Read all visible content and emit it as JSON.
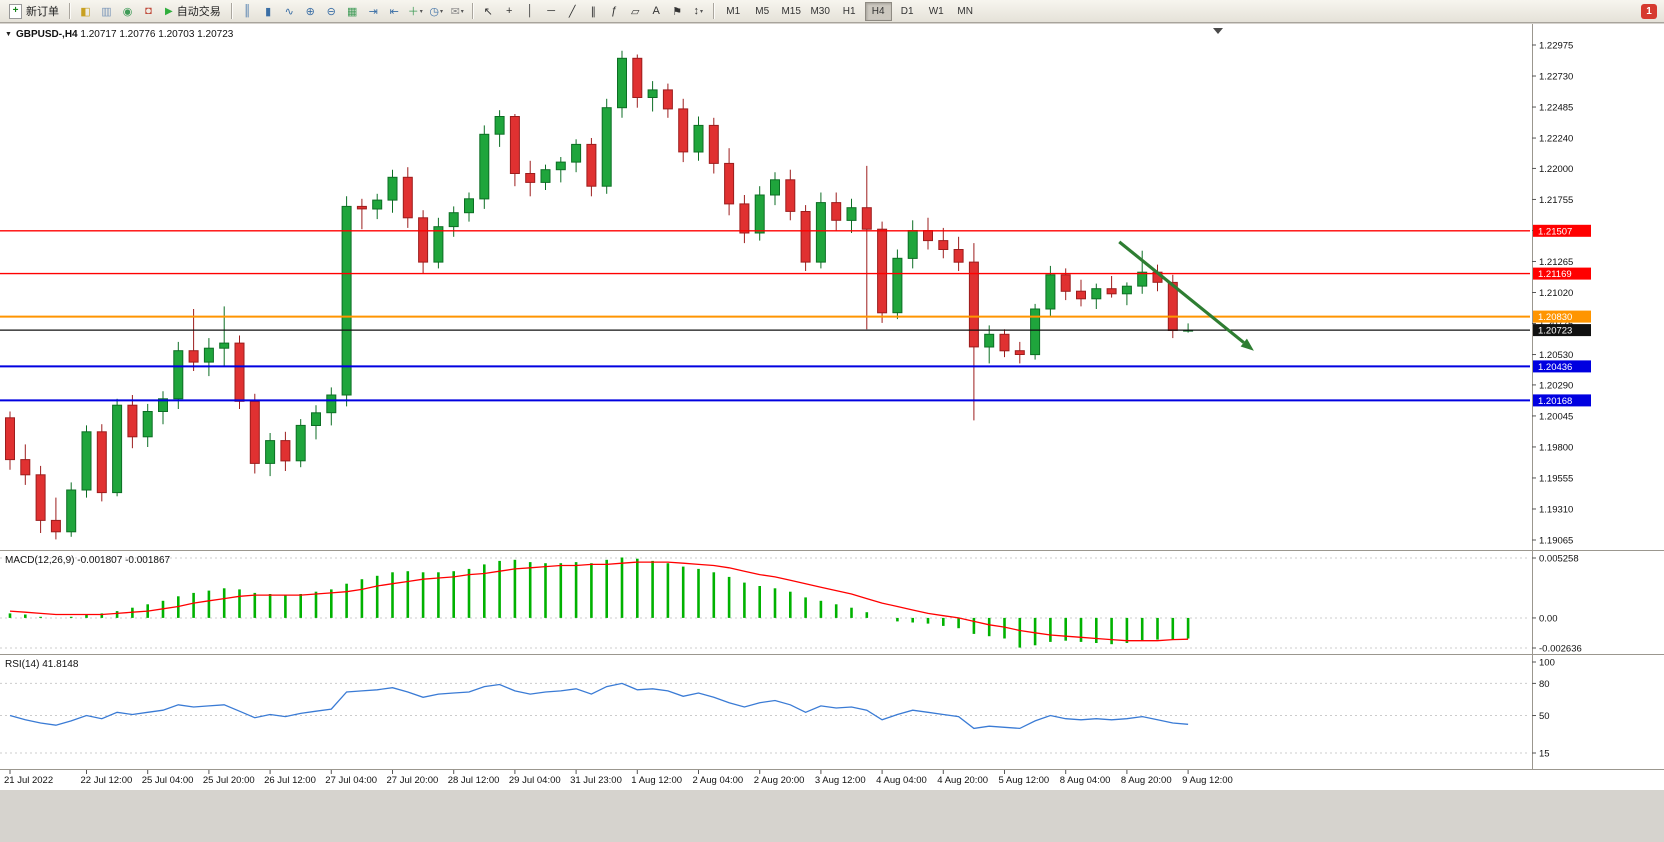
{
  "toolbar": {
    "new_order": {
      "label": "新订单"
    },
    "auto_trading": {
      "label": "自动交易"
    },
    "system_icons": [
      {
        "name": "market-watch-icon",
        "glyph": "◧",
        "color": "#c8a020"
      },
      {
        "name": "data-window-icon",
        "glyph": "▥",
        "color": "#7a96b8"
      },
      {
        "name": "navigator-icon",
        "glyph": "◉",
        "color": "#3f9b57"
      },
      {
        "name": "terminal-icon",
        "glyph": "◘",
        "color": "#c04a3a"
      }
    ],
    "chart_icons": [
      {
        "name": "bar-chart-mode-icon",
        "glyph": "║",
        "color": "#3a6ea5"
      },
      {
        "name": "candlestick-mode-icon",
        "glyph": "▮",
        "color": "#3a6ea5"
      },
      {
        "name": "line-chart-mode-icon",
        "glyph": "∿",
        "color": "#3a6ea5"
      },
      {
        "name": "zoom-in-icon",
        "glyph": "⊕",
        "color": "#3a6ea5"
      },
      {
        "name": "zoom-out-icon",
        "glyph": "⊖",
        "color": "#3a6ea5"
      },
      {
        "name": "tile-windows-icon",
        "glyph": "▦",
        "color": "#3f9b57"
      },
      {
        "name": "auto-scroll-icon",
        "glyph": "⇥",
        "color": "#3a6ea5"
      },
      {
        "name": "chart-shift-icon",
        "glyph": "⇤",
        "color": "#3a6ea5"
      },
      {
        "name": "add-indicator-icon",
        "glyph": "＋",
        "color": "#3f9b57",
        "caret": true
      },
      {
        "name": "period-icon",
        "glyph": "◷",
        "color": "#3a6ea5",
        "caret": true
      },
      {
        "name": "template-icon",
        "glyph": "✉",
        "color": "#8a8a8a",
        "caret": true
      }
    ],
    "tool_icons": [
      {
        "name": "cursor-icon",
        "glyph": "↖",
        "color": "#333333"
      },
      {
        "name": "crosshair-icon",
        "glyph": "+",
        "color": "#333333"
      },
      {
        "name": "vertical-line-icon",
        "glyph": "│",
        "color": "#333333"
      },
      {
        "name": "horizontal-line-icon",
        "glyph": "─",
        "color": "#333333"
      },
      {
        "name": "trendline-icon",
        "glyph": "╱",
        "color": "#333333"
      },
      {
        "name": "channel-icon",
        "glyph": "∥",
        "color": "#333333"
      },
      {
        "name": "fibonacci-icon",
        "glyph": "ƒ",
        "color": "#333333"
      },
      {
        "name": "shapes-icon",
        "glyph": "▱",
        "color": "#333333"
      },
      {
        "name": "text-icon",
        "glyph": "A",
        "color": "#333333"
      },
      {
        "name": "arrow-label-icon",
        "glyph": "⚑",
        "color": "#333333"
      },
      {
        "name": "arrows-menu-icon",
        "glyph": "↕",
        "color": "#333333",
        "caret": true
      }
    ],
    "timeframes": [
      "M1",
      "M5",
      "M15",
      "M30",
      "H1",
      "H4",
      "D1",
      "W1",
      "MN"
    ],
    "active_timeframe": "H4",
    "notification_badge": "1"
  },
  "chart": {
    "menu_arrow": "▼",
    "symbol_period": "GBPUSD-,H4",
    "ohlc_text": "1.20717 1.20776 1.20703 1.20723"
  },
  "chart_data": {
    "type": "candlestick",
    "symbol": "GBPUSD-",
    "timeframe": "H4",
    "current_ohlc": {
      "open": 1.20717,
      "high": 1.20776,
      "low": 1.20703,
      "close": 1.20723
    },
    "price_axis": {
      "top": 1.22975,
      "bottom": 1.19065,
      "labels": [
        "1.22975",
        "1.22730",
        "1.22485",
        "1.22240",
        "1.22000",
        "1.21755",
        "1.21510",
        "1.21265",
        "1.21020",
        "1.20775",
        "1.20530",
        "1.20290",
        "1.20045",
        "1.19800",
        "1.19555",
        "1.19310",
        "1.19065"
      ]
    },
    "time_labels": [
      "21 Jul 2022",
      "22 Jul 12:00",
      "25 Jul 04:00",
      "25 Jul 20:00",
      "26 Jul 12:00",
      "27 Jul 04:00",
      "27 Jul 20:00",
      "28 Jul 12:00",
      "29 Jul 04:00",
      "31 Jul 23:00",
      "1 Aug 12:00",
      "2 Aug 04:00",
      "2 Aug 20:00",
      "3 Aug 12:00",
      "4 Aug 04:00",
      "4 Aug 20:00",
      "5 Aug 12:00",
      "8 Aug 04:00",
      "8 Aug 20:00",
      "9 Aug 12:00"
    ],
    "time_label_indices": [
      0,
      5,
      9,
      13,
      17,
      21,
      25,
      29,
      33,
      37,
      41,
      45,
      49,
      53,
      57,
      61,
      65,
      69,
      73,
      77
    ],
    "candles": [
      [
        1.2003,
        1.2008,
        1.1962,
        1.197
      ],
      [
        1.197,
        1.1982,
        1.195,
        1.1958
      ],
      [
        1.1958,
        1.1965,
        1.1912,
        1.1922
      ],
      [
        1.1922,
        1.194,
        1.1907,
        1.1913
      ],
      [
        1.1913,
        1.1952,
        1.1909,
        1.1946
      ],
      [
        1.1946,
        1.1997,
        1.194,
        1.1992
      ],
      [
        1.1992,
        1.1998,
        1.1937,
        1.1944
      ],
      [
        1.1944,
        1.2018,
        1.1941,
        1.2013
      ],
      [
        1.2013,
        1.2021,
        1.1979,
        1.1988
      ],
      [
        1.1988,
        1.2014,
        1.198,
        1.2008
      ],
      [
        1.2008,
        1.2024,
        1.1998,
        1.2018
      ],
      [
        1.2018,
        1.2063,
        1.201,
        1.2056
      ],
      [
        1.2056,
        1.2089,
        1.204,
        1.2047
      ],
      [
        1.2047,
        1.2066,
        1.2036,
        1.2058
      ],
      [
        1.2058,
        1.2091,
        1.2044,
        1.2062
      ],
      [
        1.2062,
        1.2068,
        1.201,
        1.2016
      ],
      [
        1.2016,
        1.2022,
        1.1959,
        1.1967
      ],
      [
        1.1967,
        1.1991,
        1.1957,
        1.1985
      ],
      [
        1.1985,
        1.1992,
        1.1961,
        1.1969
      ],
      [
        1.1969,
        1.2002,
        1.1964,
        1.1997
      ],
      [
        1.1997,
        1.2013,
        1.1986,
        1.2007
      ],
      [
        1.2007,
        1.2027,
        1.1997,
        1.2021
      ],
      [
        1.2021,
        1.2178,
        1.2012,
        1.217
      ],
      [
        1.217,
        1.2176,
        1.2152,
        1.2168
      ],
      [
        1.2168,
        1.218,
        1.216,
        1.2175
      ],
      [
        1.2175,
        1.2199,
        1.2165,
        1.2193
      ],
      [
        1.2193,
        1.2201,
        1.2153,
        1.2161
      ],
      [
        1.2161,
        1.2167,
        1.2117,
        1.2126
      ],
      [
        1.2126,
        1.2161,
        1.2121,
        1.2154
      ],
      [
        1.2154,
        1.217,
        1.2146,
        1.2165
      ],
      [
        1.2165,
        1.2181,
        1.2158,
        1.2176
      ],
      [
        1.2176,
        1.2234,
        1.2168,
        1.2227
      ],
      [
        1.2227,
        1.2246,
        1.2217,
        1.2241
      ],
      [
        1.2241,
        1.2243,
        1.2186,
        1.2196
      ],
      [
        1.2196,
        1.2206,
        1.2178,
        1.2189
      ],
      [
        1.2189,
        1.2203,
        1.2183,
        1.2199
      ],
      [
        1.2199,
        1.2209,
        1.2189,
        1.2205
      ],
      [
        1.2205,
        1.2223,
        1.2197,
        1.2219
      ],
      [
        1.2219,
        1.2224,
        1.2178,
        1.2186
      ],
      [
        1.2186,
        1.2255,
        1.218,
        1.2248
      ],
      [
        1.2248,
        1.2293,
        1.224,
        1.2287
      ],
      [
        1.2287,
        1.229,
        1.2248,
        1.2256
      ],
      [
        1.2256,
        1.2269,
        1.2245,
        1.2262
      ],
      [
        1.2262,
        1.2267,
        1.224,
        1.2247
      ],
      [
        1.2247,
        1.2255,
        1.2205,
        1.2213
      ],
      [
        1.2213,
        1.2241,
        1.2206,
        1.2234
      ],
      [
        1.2234,
        1.224,
        1.2196,
        1.2204
      ],
      [
        1.2204,
        1.2216,
        1.2163,
        1.2172
      ],
      [
        1.2172,
        1.2179,
        1.2141,
        1.2149
      ],
      [
        1.2149,
        1.2186,
        1.2143,
        1.2179
      ],
      [
        1.2179,
        1.2197,
        1.2171,
        1.2191
      ],
      [
        1.2191,
        1.2199,
        1.2159,
        1.2166
      ],
      [
        1.2166,
        1.2171,
        1.2119,
        1.2126
      ],
      [
        1.2126,
        1.2181,
        1.2121,
        1.2173
      ],
      [
        1.2173,
        1.2181,
        1.2151,
        1.2159
      ],
      [
        1.2159,
        1.2176,
        1.2149,
        1.2169
      ],
      [
        1.2169,
        1.2202,
        1.2073,
        1.2152
      ],
      [
        1.2152,
        1.2158,
        1.2078,
        1.2086
      ],
      [
        1.2086,
        1.2136,
        1.2081,
        1.2129
      ],
      [
        1.2129,
        1.2159,
        1.2121,
        1.2151
      ],
      [
        1.2151,
        1.2161,
        1.2136,
        1.2143
      ],
      [
        1.2143,
        1.2153,
        1.2129,
        1.2136
      ],
      [
        1.2136,
        1.2146,
        1.2119,
        1.2126
      ],
      [
        1.2126,
        1.2141,
        1.2001,
        1.2059
      ],
      [
        1.2059,
        1.2076,
        1.2046,
        1.2069
      ],
      [
        1.2069,
        1.2073,
        1.2051,
        1.2056
      ],
      [
        1.2056,
        1.2063,
        1.2046,
        1.2053
      ],
      [
        1.2053,
        1.2093,
        1.2049,
        1.2089
      ],
      [
        1.2089,
        1.2123,
        1.2083,
        1.2116
      ],
      [
        1.2116,
        1.2121,
        1.2096,
        1.2103
      ],
      [
        1.2103,
        1.2112,
        1.2091,
        1.2097
      ],
      [
        1.2097,
        1.2109,
        1.2089,
        1.2105
      ],
      [
        1.2105,
        1.2115,
        1.2098,
        1.2101
      ],
      [
        1.2101,
        1.211,
        1.2092,
        1.2107
      ],
      [
        1.2107,
        1.2135,
        1.2101,
        1.2118
      ],
      [
        1.2118,
        1.2124,
        1.2103,
        1.211
      ],
      [
        1.211,
        1.2116,
        1.2066,
        1.2072
      ],
      [
        1.20717,
        1.20776,
        1.20703,
        1.20723
      ]
    ],
    "hlines": [
      {
        "price": 1.21507,
        "label": "1.21507",
        "color": "#ff0000",
        "width": 1.4
      },
      {
        "price": 1.21169,
        "label": "1.21169",
        "color": "#ff0000",
        "width": 1.4
      },
      {
        "price": 1.2083,
        "label": "1.20830",
        "color": "#ff9500",
        "width": 2
      },
      {
        "price": 1.20723,
        "label": "1.20723",
        "color": "#111111",
        "width": 1.2
      },
      {
        "price": 1.20436,
        "label": "1.20436",
        "color": "#0000e0",
        "width": 2
      },
      {
        "price": 1.20168,
        "label": "1.20168",
        "color": "#0000e0",
        "width": 2
      }
    ],
    "arrow": {
      "from_index": 72.5,
      "from_price": 1.2142,
      "to_index": 81.3,
      "to_price": 1.2056,
      "color": "#2e7d32"
    },
    "macd": {
      "label": "MACD(12,26,9)",
      "values_text": "-0.001807 -0.001867",
      "main_value": -0.001807,
      "signal_value": -0.001867,
      "axis": [
        "0.005258",
        "0.00",
        "-0.002636"
      ],
      "ymax": 0.005258,
      "ymin": -0.002636,
      "histogram": [
        0.0004,
        0.0003,
        0.0001,
        0.0,
        0.0001,
        0.0003,
        0.0004,
        0.0006,
        0.0009,
        0.0012,
        0.0015,
        0.0019,
        0.0022,
        0.0024,
        0.0026,
        0.0025,
        0.0022,
        0.0021,
        0.002,
        0.0021,
        0.0023,
        0.0025,
        0.003,
        0.0034,
        0.0037,
        0.004,
        0.0041,
        0.004,
        0.004,
        0.0041,
        0.0043,
        0.0047,
        0.005,
        0.0051,
        0.0049,
        0.0048,
        0.0048,
        0.0049,
        0.0048,
        0.0051,
        0.0053,
        0.0052,
        0.005,
        0.0048,
        0.0045,
        0.0043,
        0.004,
        0.0036,
        0.0031,
        0.0028,
        0.0026,
        0.0023,
        0.0018,
        0.0015,
        0.0012,
        0.0009,
        0.0005,
        0.0,
        -0.0003,
        -0.0004,
        -0.0005,
        -0.0007,
        -0.0009,
        -0.0014,
        -0.0016,
        -0.0018,
        -0.0026,
        -0.0024,
        -0.0021,
        -0.002,
        -0.0021,
        -0.0022,
        -0.0023,
        -0.0022,
        -0.002,
        -0.0019,
        -0.0019,
        -0.001807
      ],
      "signal": [
        0.0006,
        0.0005,
        0.0004,
        0.0003,
        0.0003,
        0.0003,
        0.0003,
        0.0004,
        0.0005,
        0.0006,
        0.0008,
        0.001,
        0.0013,
        0.0015,
        0.0017,
        0.0019,
        0.002,
        0.002,
        0.002,
        0.002,
        0.0021,
        0.0022,
        0.0023,
        0.0025,
        0.0028,
        0.003,
        0.0032,
        0.0034,
        0.0035,
        0.0036,
        0.0038,
        0.0039,
        0.0041,
        0.0043,
        0.0044,
        0.0045,
        0.0046,
        0.0046,
        0.0047,
        0.0047,
        0.0048,
        0.0049,
        0.0049,
        0.0049,
        0.0048,
        0.0047,
        0.0046,
        0.0044,
        0.0041,
        0.0038,
        0.0036,
        0.0033,
        0.003,
        0.0027,
        0.0024,
        0.0021,
        0.0017,
        0.0013,
        0.001,
        0.0007,
        0.0004,
        0.0002,
        0.0,
        -0.0003,
        -0.0006,
        -0.0008,
        -0.0011,
        -0.0013,
        -0.0015,
        -0.0016,
        -0.0017,
        -0.0018,
        -0.0019,
        -0.002,
        -0.002,
        -0.002,
        -0.0019,
        -0.001867
      ]
    },
    "rsi": {
      "label": "RSI(14)",
      "value_text": "41.8148",
      "current_value": 41.8148,
      "axis": [
        "100",
        "80",
        "50",
        "15"
      ],
      "ymax": 100,
      "ymin": 15,
      "values": [
        50,
        46,
        43,
        41,
        45,
        50,
        47,
        53,
        51,
        53,
        55,
        60,
        58,
        59,
        60,
        54,
        48,
        51,
        49,
        52,
        54,
        56,
        72,
        73,
        74,
        76,
        72,
        67,
        70,
        71,
        72,
        77,
        79,
        73,
        70,
        72,
        73,
        75,
        70,
        77,
        80,
        74,
        75,
        73,
        68,
        71,
        67,
        62,
        58,
        62,
        64,
        60,
        53,
        59,
        57,
        58,
        55,
        46,
        51,
        55,
        53,
        51,
        49,
        38,
        40,
        39,
        38,
        45,
        50,
        47,
        46,
        47,
        46,
        47,
        49,
        46,
        43,
        41.8
      ]
    }
  }
}
